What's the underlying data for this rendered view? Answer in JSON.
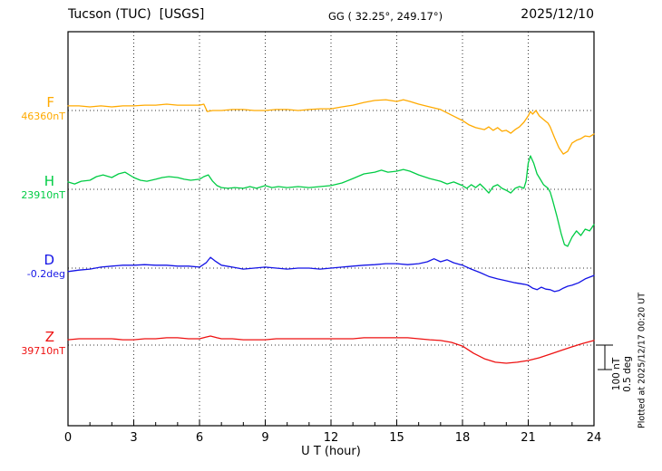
{
  "header": {
    "station": "Tucson (TUC)  [USGS]",
    "coords": "GG ( 32.25°, 249.17°)",
    "date": "2025/12/10"
  },
  "axis": {
    "xlabel": "U T (hour)"
  },
  "scale_bar": {
    "nt_label": "100 nT",
    "deg_label": "0.5 deg"
  },
  "plotted_at": "Plotted at 2025/12/17 00:20 UT",
  "channels": [
    {
      "letter": "F",
      "value_label": "46360nT",
      "color": "#ffaa00"
    },
    {
      "letter": "H",
      "value_label": "23910nT",
      "color": "#00cc44"
    },
    {
      "letter": "D",
      "value_label": "-0.2deg",
      "color": "#1414e6"
    },
    {
      "letter": "Z",
      "value_label": "39710nT",
      "color": "#ee1111"
    }
  ],
  "chart_data": {
    "type": "line",
    "title": "Tucson (TUC) [USGS] magnetogram 2025/12/10",
    "xlabel": "U T (hour)",
    "x_range": [
      0,
      24
    ],
    "x_ticks": [
      0,
      3,
      6,
      9,
      12,
      15,
      18,
      21,
      24
    ],
    "x_minor_tick_interval": 1,
    "grid": "dotted vertical lines every 3 h, dotted horizontal baseline per channel",
    "scale": {
      "nT_per_div": 100,
      "deg_per_div": 0.5
    },
    "series": [
      {
        "name": "F",
        "unit": "nT",
        "baseline": 46360,
        "baseline_label": "46360nT",
        "color": "#ffaa00",
        "points": [
          [
            0,
            19
          ],
          [
            0.5,
            19
          ],
          [
            1,
            15
          ],
          [
            1.5,
            19
          ],
          [
            2,
            15
          ],
          [
            2.5,
            19
          ],
          [
            3,
            19
          ],
          [
            3.5,
            22
          ],
          [
            4,
            22
          ],
          [
            4.5,
            26
          ],
          [
            5,
            22
          ],
          [
            5.5,
            22
          ],
          [
            6,
            22
          ],
          [
            6.2,
            26
          ],
          [
            6.35,
            -4
          ],
          [
            6.6,
            0
          ],
          [
            7,
            0
          ],
          [
            7.5,
            4
          ],
          [
            8,
            4
          ],
          [
            8.5,
            0
          ],
          [
            9,
            0
          ],
          [
            9.5,
            4
          ],
          [
            10,
            4
          ],
          [
            10.5,
            0
          ],
          [
            11,
            4
          ],
          [
            11.5,
            7
          ],
          [
            12,
            7
          ],
          [
            12.5,
            15
          ],
          [
            13,
            22
          ],
          [
            13.5,
            33
          ],
          [
            14,
            41
          ],
          [
            14.5,
            44
          ],
          [
            15,
            37
          ],
          [
            15.3,
            44
          ],
          [
            15.6,
            37
          ],
          [
            16,
            26
          ],
          [
            16.5,
            15
          ],
          [
            17,
            4
          ],
          [
            17.5,
            -19
          ],
          [
            18,
            -41
          ],
          [
            18.3,
            -59
          ],
          [
            18.6,
            -70
          ],
          [
            19,
            -78
          ],
          [
            19.2,
            -67
          ],
          [
            19.4,
            -81
          ],
          [
            19.6,
            -70
          ],
          [
            19.8,
            -85
          ],
          [
            20,
            -81
          ],
          [
            20.2,
            -93
          ],
          [
            20.4,
            -78
          ],
          [
            20.6,
            -67
          ],
          [
            20.8,
            -48
          ],
          [
            21,
            -22
          ],
          [
            21.1,
            -4
          ],
          [
            21.2,
            -15
          ],
          [
            21.35,
            0
          ],
          [
            21.5,
            -22
          ],
          [
            21.7,
            -37
          ],
          [
            21.9,
            -52
          ],
          [
            22,
            -67
          ],
          [
            22.2,
            -111
          ],
          [
            22.4,
            -152
          ],
          [
            22.6,
            -178
          ],
          [
            22.8,
            -167
          ],
          [
            23,
            -133
          ],
          [
            23.2,
            -122
          ],
          [
            23.4,
            -115
          ],
          [
            23.6,
            -104
          ],
          [
            23.8,
            -107
          ],
          [
            24,
            -96
          ]
        ]
      },
      {
        "name": "H",
        "unit": "nT",
        "baseline": 23910,
        "baseline_label": "23910nT",
        "color": "#00cc44",
        "points": [
          [
            0,
            30
          ],
          [
            0.3,
            22
          ],
          [
            0.6,
            33
          ],
          [
            1,
            37
          ],
          [
            1.3,
            52
          ],
          [
            1.6,
            59
          ],
          [
            2,
            48
          ],
          [
            2.3,
            63
          ],
          [
            2.6,
            70
          ],
          [
            3,
            48
          ],
          [
            3.3,
            37
          ],
          [
            3.6,
            33
          ],
          [
            4,
            41
          ],
          [
            4.3,
            48
          ],
          [
            4.6,
            52
          ],
          [
            5,
            48
          ],
          [
            5.3,
            41
          ],
          [
            5.6,
            37
          ],
          [
            6,
            41
          ],
          [
            6.2,
            52
          ],
          [
            6.4,
            59
          ],
          [
            6.6,
            33
          ],
          [
            6.8,
            15
          ],
          [
            7,
            7
          ],
          [
            7.3,
            4
          ],
          [
            7.6,
            7
          ],
          [
            8,
            4
          ],
          [
            8.3,
            11
          ],
          [
            8.6,
            4
          ],
          [
            9,
            15
          ],
          [
            9.3,
            7
          ],
          [
            9.6,
            11
          ],
          [
            10,
            7
          ],
          [
            10.5,
            11
          ],
          [
            11,
            7
          ],
          [
            11.5,
            11
          ],
          [
            12,
            15
          ],
          [
            12.5,
            26
          ],
          [
            13,
            44
          ],
          [
            13.5,
            63
          ],
          [
            14,
            70
          ],
          [
            14.3,
            78
          ],
          [
            14.6,
            70
          ],
          [
            15,
            74
          ],
          [
            15.3,
            81
          ],
          [
            15.6,
            74
          ],
          [
            16,
            59
          ],
          [
            16.5,
            44
          ],
          [
            17,
            33
          ],
          [
            17.3,
            22
          ],
          [
            17.6,
            30
          ],
          [
            18,
            15
          ],
          [
            18.2,
            4
          ],
          [
            18.4,
            19
          ],
          [
            18.6,
            7
          ],
          [
            18.8,
            22
          ],
          [
            19,
            4
          ],
          [
            19.2,
            -15
          ],
          [
            19.4,
            11
          ],
          [
            19.6,
            19
          ],
          [
            19.8,
            4
          ],
          [
            20,
            -4
          ],
          [
            20.2,
            -15
          ],
          [
            20.4,
            4
          ],
          [
            20.6,
            11
          ],
          [
            20.8,
            4
          ],
          [
            20.9,
            33
          ],
          [
            21,
            107
          ],
          [
            21.1,
            137
          ],
          [
            21.25,
            107
          ],
          [
            21.4,
            63
          ],
          [
            21.55,
            41
          ],
          [
            21.7,
            19
          ],
          [
            21.9,
            4
          ],
          [
            22,
            -11
          ],
          [
            22.1,
            -41
          ],
          [
            22.3,
            -107
          ],
          [
            22.5,
            -181
          ],
          [
            22.65,
            -226
          ],
          [
            22.8,
            -233
          ],
          [
            23,
            -196
          ],
          [
            23.2,
            -170
          ],
          [
            23.4,
            -189
          ],
          [
            23.6,
            -163
          ],
          [
            23.8,
            -170
          ],
          [
            24,
            -144
          ]
        ]
      },
      {
        "name": "D",
        "unit": "deg",
        "baseline": -0.2,
        "baseline_label": "-0.2deg",
        "color": "#1414e6",
        "points": [
          [
            0,
            -0.07
          ],
          [
            0.5,
            -0.04
          ],
          [
            1,
            -0.02
          ],
          [
            1.5,
            0.02
          ],
          [
            2,
            0.04
          ],
          [
            2.5,
            0.06
          ],
          [
            3,
            0.06
          ],
          [
            3.5,
            0.07
          ],
          [
            4,
            0.06
          ],
          [
            4.5,
            0.06
          ],
          [
            5,
            0.04
          ],
          [
            5.5,
            0.04
          ],
          [
            6,
            0.02
          ],
          [
            6.3,
            0.11
          ],
          [
            6.5,
            0.22
          ],
          [
            6.7,
            0.15
          ],
          [
            7,
            0.06
          ],
          [
            7.5,
            0.02
          ],
          [
            8,
            -0.02
          ],
          [
            8.5,
            0
          ],
          [
            9,
            0.02
          ],
          [
            9.5,
            0
          ],
          [
            10,
            -0.02
          ],
          [
            10.5,
            0
          ],
          [
            11,
            0
          ],
          [
            11.5,
            -0.02
          ],
          [
            12,
            0
          ],
          [
            12.5,
            0.02
          ],
          [
            13,
            0.04
          ],
          [
            13.5,
            0.06
          ],
          [
            14,
            0.07
          ],
          [
            14.5,
            0.09
          ],
          [
            15,
            0.09
          ],
          [
            15.5,
            0.07
          ],
          [
            16,
            0.09
          ],
          [
            16.4,
            0.13
          ],
          [
            16.7,
            0.19
          ],
          [
            17,
            0.13
          ],
          [
            17.3,
            0.17
          ],
          [
            17.6,
            0.11
          ],
          [
            18,
            0.06
          ],
          [
            18.4,
            -0.02
          ],
          [
            18.8,
            -0.09
          ],
          [
            19.2,
            -0.17
          ],
          [
            19.6,
            -0.22
          ],
          [
            20,
            -0.26
          ],
          [
            20.4,
            -0.3
          ],
          [
            20.8,
            -0.33
          ],
          [
            21,
            -0.35
          ],
          [
            21.2,
            -0.41
          ],
          [
            21.4,
            -0.44
          ],
          [
            21.6,
            -0.39
          ],
          [
            21.8,
            -0.43
          ],
          [
            22,
            -0.44
          ],
          [
            22.2,
            -0.48
          ],
          [
            22.4,
            -0.46
          ],
          [
            22.6,
            -0.41
          ],
          [
            22.8,
            -0.37
          ],
          [
            23,
            -0.35
          ],
          [
            23.3,
            -0.3
          ],
          [
            23.6,
            -0.22
          ],
          [
            24,
            -0.15
          ]
        ]
      },
      {
        "name": "Z",
        "unit": "nT",
        "baseline": 39710,
        "baseline_label": "39710nT",
        "color": "#ee1111",
        "points": [
          [
            0,
            22
          ],
          [
            0.5,
            26
          ],
          [
            1,
            26
          ],
          [
            1.5,
            26
          ],
          [
            2,
            26
          ],
          [
            2.5,
            22
          ],
          [
            3,
            22
          ],
          [
            3.5,
            26
          ],
          [
            4,
            26
          ],
          [
            4.5,
            30
          ],
          [
            5,
            30
          ],
          [
            5.5,
            26
          ],
          [
            6,
            26
          ],
          [
            6.3,
            33
          ],
          [
            6.5,
            37
          ],
          [
            6.8,
            30
          ],
          [
            7,
            26
          ],
          [
            7.5,
            26
          ],
          [
            8,
            22
          ],
          [
            8.5,
            22
          ],
          [
            9,
            22
          ],
          [
            9.5,
            26
          ],
          [
            10,
            26
          ],
          [
            10.5,
            26
          ],
          [
            11,
            26
          ],
          [
            11.5,
            26
          ],
          [
            12,
            26
          ],
          [
            12.5,
            26
          ],
          [
            13,
            26
          ],
          [
            13.5,
            30
          ],
          [
            14,
            30
          ],
          [
            14.5,
            30
          ],
          [
            15,
            30
          ],
          [
            15.5,
            30
          ],
          [
            16,
            26
          ],
          [
            16.5,
            22
          ],
          [
            17,
            19
          ],
          [
            17.5,
            11
          ],
          [
            18,
            -4
          ],
          [
            18.5,
            -33
          ],
          [
            19,
            -56
          ],
          [
            19.5,
            -70
          ],
          [
            20,
            -74
          ],
          [
            20.5,
            -70
          ],
          [
            21,
            -63
          ],
          [
            21.5,
            -52
          ],
          [
            22,
            -37
          ],
          [
            22.5,
            -22
          ],
          [
            23,
            -7
          ],
          [
            23.5,
            7
          ],
          [
            24,
            19
          ]
        ]
      }
    ]
  }
}
